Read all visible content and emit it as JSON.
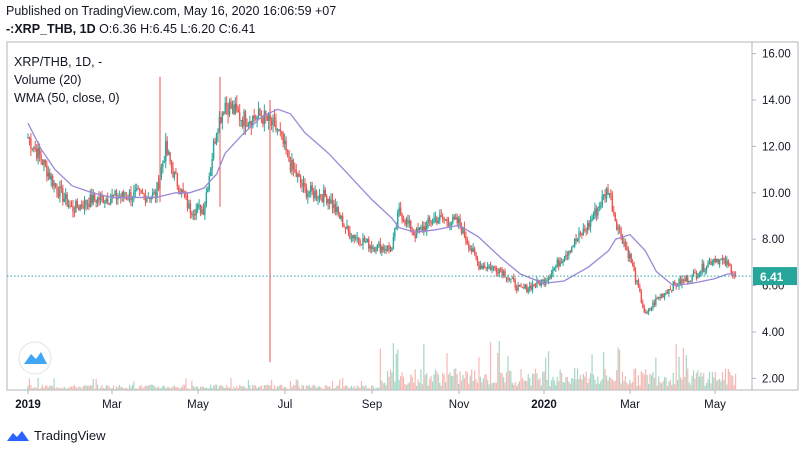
{
  "header": {
    "published": "Published on TradingView.com, May 16, 2020 16:06:59 +07",
    "symbol": "-:XRP_THB, 1D",
    "ohlc": "O:6.36 H:6.45 L:6.20 C:6.41"
  },
  "legend": {
    "title": "XRP/THB, 1D, -",
    "volume": "Volume (20)",
    "wma": "WMA (50, close, 0)"
  },
  "footer": {
    "brand": "TradingView"
  },
  "colors": {
    "up": "#26a69a",
    "down": "#ef5350",
    "wma": "#9c88d8",
    "last_price": "#26a69a",
    "vol_up": "#a5d6c6",
    "vol_down": "#f6b8b4"
  },
  "chart_data": {
    "type": "candlestick",
    "price_axis": {
      "min": 1.5,
      "max": 16.5,
      "ticks": [
        "16.00",
        "14.00",
        "12.00",
        "10.00",
        "8.00",
        "6.00",
        "4.00",
        "2.00"
      ]
    },
    "time_axis": [
      "2019",
      "Mar",
      "May",
      "Jul",
      "Sep",
      "Nov",
      "2020",
      "Mar",
      "May"
    ],
    "last_price": "6.41",
    "series": [
      {
        "name": "XRP/THB",
        "x": [
          "2019-01-01",
          "2019-01-10",
          "2019-01-20",
          "2019-02-01",
          "2019-02-15",
          "2019-03-01",
          "2019-03-15",
          "2019-04-01",
          "2019-04-08",
          "2019-04-15",
          "2019-04-25",
          "2019-05-05",
          "2019-05-14",
          "2019-05-20",
          "2019-06-01",
          "2019-06-15",
          "2019-06-26",
          "2019-07-05",
          "2019-07-15",
          "2019-08-01",
          "2019-08-15",
          "2019-09-01",
          "2019-09-15",
          "2019-09-20",
          "2019-10-01",
          "2019-10-15",
          "2019-11-01",
          "2019-11-15",
          "2019-12-01",
          "2019-12-15",
          "2020-01-01",
          "2020-01-15",
          "2020-02-01",
          "2020-02-15",
          "2020-02-20",
          "2020-03-01",
          "2020-03-12",
          "2020-03-20",
          "2020-04-01",
          "2020-04-15",
          "2020-05-01",
          "2020-05-10",
          "2020-05-16"
        ],
        "close": [
          12.4,
          11.5,
          10.3,
          9.3,
          9.7,
          9.8,
          9.9,
          9.9,
          11.9,
          10.6,
          9.3,
          9.3,
          12.8,
          13.9,
          13.2,
          13.3,
          12.7,
          11.2,
          10.1,
          9.8,
          8.3,
          7.7,
          7.6,
          9.2,
          8.2,
          8.9,
          8.7,
          6.9,
          6.7,
          5.8,
          6.2,
          7.3,
          8.6,
          10.2,
          8.8,
          7.2,
          4.7,
          5.4,
          6.0,
          6.4,
          7.2,
          6.9,
          6.41
        ]
      },
      {
        "name": "WMA (50, close, 0)",
        "values": [
          13.0,
          11.9,
          11.0,
          10.3,
          10.0,
          9.8,
          9.8,
          9.8,
          9.9,
          10.0,
          10.0,
          10.2,
          10.8,
          11.7,
          12.5,
          13.3,
          13.6,
          13.4,
          12.6,
          11.7,
          10.8,
          9.7,
          8.9,
          8.5,
          8.3,
          8.4,
          8.6,
          8.1,
          7.2,
          6.5,
          6.1,
          6.2,
          6.8,
          7.5,
          8.0,
          8.2,
          7.5,
          6.6,
          6.0,
          6.1,
          6.3,
          6.5,
          6.5
        ]
      }
    ]
  }
}
